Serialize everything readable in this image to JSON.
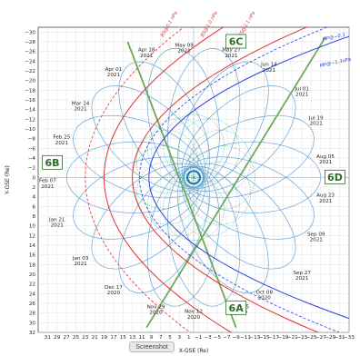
{
  "toolbar": {
    "screenshot_label": "Screenshot"
  },
  "chart_data": {
    "type": "line",
    "xlabel": "X-GSE (Re)",
    "ylabel": "Y-GSE (Re)",
    "xlim": [
      33,
      -33
    ],
    "ylim": [
      32,
      -31
    ],
    "x_ticks": [
      31,
      29,
      27,
      25,
      23,
      21,
      19,
      17,
      15,
      13,
      11,
      9,
      7,
      5,
      3,
      1,
      -1,
      -3,
      -5,
      -7,
      -9,
      -11,
      -13,
      -15,
      -17,
      -19,
      -21,
      -23,
      -25,
      -27,
      -29,
      -31,
      -33
    ],
    "y_ticks": [
      -30,
      -28,
      -26,
      -24,
      -22,
      -20,
      -18,
      -16,
      -14,
      -12,
      -10,
      -8,
      -6,
      -4,
      -2,
      0,
      2,
      4,
      6,
      8,
      10,
      12,
      14,
      16,
      18,
      20,
      22,
      24,
      26,
      28,
      30,
      32
    ],
    "grid": true,
    "colors": {
      "orbit": "#5b9bd5",
      "inner_orbit": "#3cae8f",
      "bs": "#e03030",
      "mp": "#2a3ee0",
      "sector": "#6ea85a",
      "region": "#2e6b2a"
    },
    "orbit": {
      "apogee_re": 27,
      "perigee_re": 2,
      "precession_deg_per_orbit": 20,
      "n_orbits": 18
    },
    "inner_orbit": {
      "radius_re": 13
    },
    "series": [
      {
        "name": "BS@0.1 nPa",
        "kind": "bow_shock",
        "subsolar_re": 23,
        "flare": 2.0,
        "style": "dashed"
      },
      {
        "name": "BS@1.0 nPa",
        "kind": "bow_shock",
        "subsolar_re": 19,
        "flare": 2.0,
        "style": "solid"
      },
      {
        "name": "BS@2.1 nPa",
        "kind": "bow_shock",
        "subsolar_re": 13,
        "flare": 2.0,
        "style": "solid"
      },
      {
        "name": "MP@~0.3",
        "kind": "magnetopause",
        "subsolar_re": 11.5,
        "flare": 2.1,
        "style": "dashed"
      },
      {
        "name": "MP@~1.3nPa",
        "kind": "magnetopause",
        "subsolar_re": 9.5,
        "flare": 2.1,
        "style": "solid"
      }
    ],
    "sector_lines": [
      {
        "from": [
          14,
          -28
        ],
        "to": [
          -9,
          31
        ]
      },
      {
        "from": [
          -28,
          -29
        ],
        "to": [
          10,
          31
        ]
      }
    ],
    "regions": [
      {
        "label": "6A",
        "x": -9,
        "y": 27
      },
      {
        "label": "6B",
        "x": 30,
        "y": -3
      },
      {
        "label": "6C",
        "x": -9,
        "y": -28
      },
      {
        "label": "6D",
        "x": -30,
        "y": 0
      }
    ],
    "annotations": [
      {
        "text": [
          "May 09",
          "2021"
        ],
        "x": 2,
        "y": -27
      },
      {
        "text": [
          "May 27",
          "2021"
        ],
        "x": -8,
        "y": -26
      },
      {
        "text": [
          "Apr 18",
          "2021"
        ],
        "x": 10,
        "y": -26
      },
      {
        "text": [
          "Jun 14",
          "2021"
        ],
        "x": -16,
        "y": -23
      },
      {
        "text": [
          "Apr 01",
          "2021"
        ],
        "x": 17,
        "y": -22
      },
      {
        "text": [
          "Jul 01",
          "2021"
        ],
        "x": -23,
        "y": -18
      },
      {
        "text": [
          "Mar 14",
          "2021"
        ],
        "x": 24,
        "y": -15
      },
      {
        "text": [
          "Jul 19",
          "2021"
        ],
        "x": -26,
        "y": -12
      },
      {
        "text": [
          "Feb 25",
          "2021"
        ],
        "x": 28,
        "y": -8
      },
      {
        "text": [
          "Aug 05",
          "2021"
        ],
        "x": -28,
        "y": -4
      },
      {
        "text": [
          "Feb 07",
          "2021"
        ],
        "x": 31,
        "y": 1
      },
      {
        "text": [
          "Aug 23",
          "2021"
        ],
        "x": -28,
        "y": 4
      },
      {
        "text": [
          "Jan 21",
          "2021"
        ],
        "x": 29,
        "y": 9
      },
      {
        "text": [
          "Sep 09",
          "2021"
        ],
        "x": -26,
        "y": 12
      },
      {
        "text": [
          "Jan 03",
          "2021"
        ],
        "x": 24,
        "y": 17
      },
      {
        "text": [
          "Sep 27",
          "2021"
        ],
        "x": -23,
        "y": 20
      },
      {
        "text": [
          "Dec 17",
          "2020"
        ],
        "x": 17,
        "y": 23
      },
      {
        "text": [
          "Oct 08",
          "2020"
        ],
        "x": -15,
        "y": 24
      },
      {
        "text": [
          "Nov 29",
          "2020"
        ],
        "x": 8,
        "y": 27
      },
      {
        "text": [
          "Oct 25",
          "2020"
        ],
        "x": -10,
        "y": 27
      },
      {
        "text": [
          "Nov 12",
          "2020"
        ],
        "x": 0,
        "y": 28
      }
    ]
  }
}
